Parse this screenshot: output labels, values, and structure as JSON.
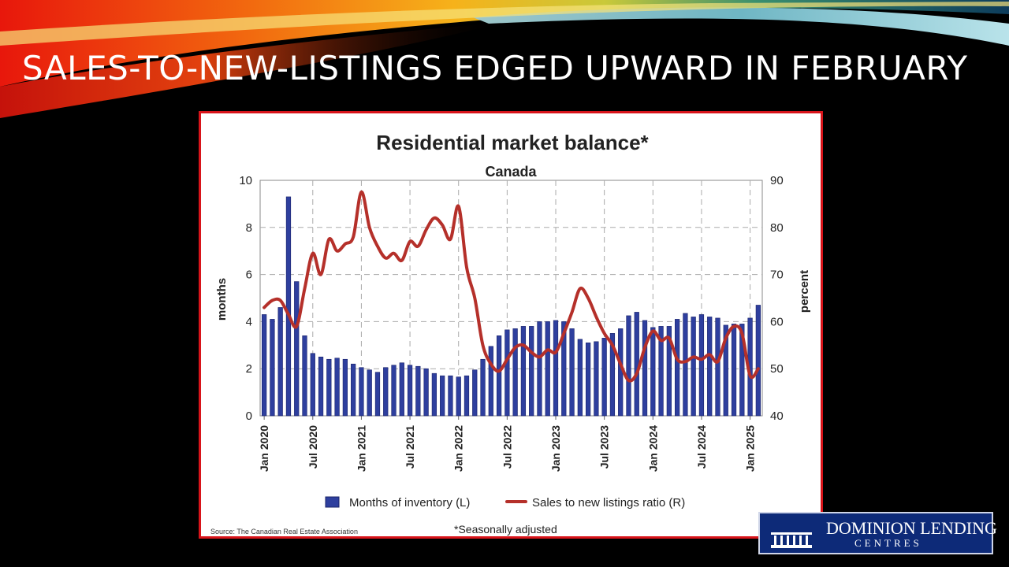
{
  "slide": {
    "title": "SALES-TO-NEW-LISTINGS EDGED UPWARD IN FEBRUARY",
    "accent_color": "#d8141a"
  },
  "logo": {
    "line1": "DOMINION LENDING",
    "line2": "CENTRES",
    "icon": "building-icon",
    "background": "#0d2a78"
  },
  "chart_data": {
    "type": "bar",
    "title": "Residential market balance*",
    "subtitle": "Canada",
    "ylabel_left": "months",
    "ylabel_right": "percent",
    "ylim_left": [
      0,
      10
    ],
    "ylim_right": [
      40,
      90
    ],
    "yticks_left": [
      "0",
      "2",
      "4",
      "6",
      "8",
      "10"
    ],
    "yticks_right": [
      "40",
      "50",
      "60",
      "70",
      "80",
      "90"
    ],
    "grid": true,
    "xticks": [
      {
        "label": "Jan 2020",
        "index": 0
      },
      {
        "label": "Jul 2020",
        "index": 6
      },
      {
        "label": "Jan 2021",
        "index": 12
      },
      {
        "label": "Jul 2021",
        "index": 18
      },
      {
        "label": "Jan 2022",
        "index": 24
      },
      {
        "label": "Jul 2022",
        "index": 30
      },
      {
        "label": "Jan 2023",
        "index": 36
      },
      {
        "label": "Jul 2023",
        "index": 42
      },
      {
        "label": "Jan 2024",
        "index": 48
      },
      {
        "label": "Jul 2024",
        "index": 54
      },
      {
        "label": "Jan 2025",
        "index": 60
      }
    ],
    "legend_position": "bottom",
    "series": [
      {
        "name": "Months of inventory (L)",
        "type": "bar",
        "axis": "left",
        "color": "#2e3f9e",
        "values": [
          4.3,
          4.1,
          4.6,
          9.3,
          5.7,
          3.4,
          2.65,
          2.5,
          2.4,
          2.45,
          2.4,
          2.2,
          2.05,
          1.95,
          1.85,
          2.05,
          2.15,
          2.25,
          2.15,
          2.1,
          2.0,
          1.8,
          1.7,
          1.7,
          1.65,
          1.7,
          1.95,
          2.4,
          2.95,
          3.4,
          3.65,
          3.7,
          3.8,
          3.8,
          4.0,
          4.0,
          4.05,
          4.0,
          3.7,
          3.25,
          3.1,
          3.15,
          3.3,
          3.5,
          3.7,
          4.25,
          4.4,
          4.05,
          3.75,
          3.8,
          3.8,
          4.1,
          4.35,
          4.2,
          4.3,
          4.2,
          4.15,
          3.85,
          3.9,
          3.9,
          4.15,
          4.7
        ]
      },
      {
        "name": "Sales to new listings ratio (R)",
        "type": "line",
        "axis": "right",
        "color": "#b5302a",
        "values": [
          63,
          64.5,
          64.5,
          61.5,
          59,
          67,
          74.5,
          70,
          77.5,
          75,
          76.5,
          78,
          87.5,
          80,
          76,
          73.5,
          74.5,
          73,
          77,
          76,
          79.5,
          82,
          80.5,
          77.5,
          84.5,
          71.5,
          65,
          55,
          51,
          49.5,
          52,
          54.5,
          55,
          53.5,
          52.5,
          54,
          53.5,
          57.5,
          62,
          67,
          65,
          61,
          57.5,
          55,
          51,
          47.5,
          49,
          54.5,
          58,
          56,
          56.5,
          52,
          51.5,
          52.5,
          52,
          53,
          51.5,
          56.5,
          59,
          57.5,
          48.5,
          50
        ]
      }
    ],
    "source": "Source: The Canadian Real Estate Association",
    "note": "*Seasonally adjusted"
  }
}
